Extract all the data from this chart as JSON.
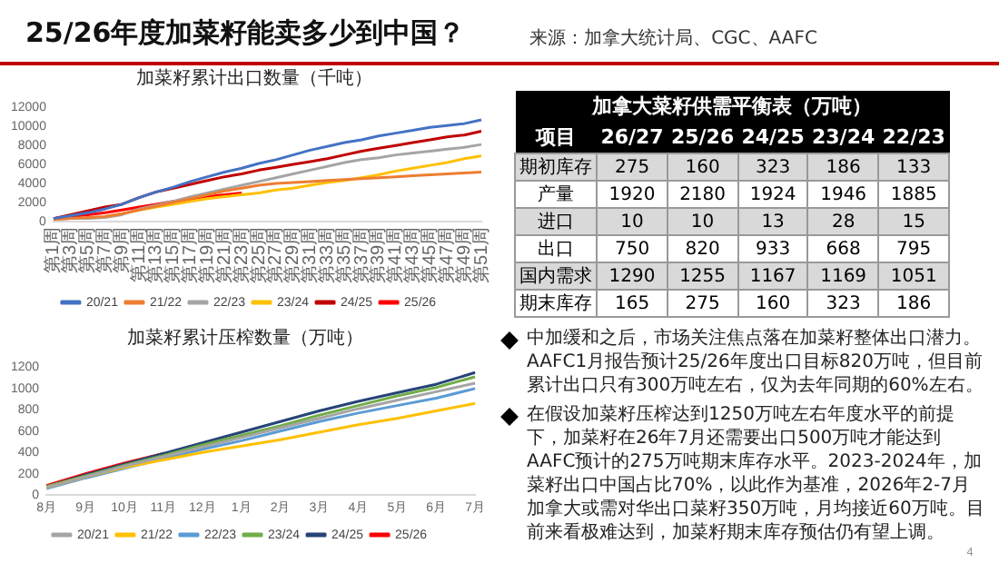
{
  "chart_data": [
    {
      "type": "other",
      "title": "25/26年度加菜籽能卖多少到中国？",
      "annotations": [
        "来源：加拿大统计局、CGC、AAFC",
        "4"
      ]
    },
    {
      "type": "line",
      "title": "加菜籽累计出口数量（千吨）",
      "categories": [
        "第1周",
        "第3周",
        "第5周",
        "第7周",
        "第9周",
        "第11周",
        "第13周",
        "第15周",
        "第17周",
        "第19周",
        "第21周",
        "第23周",
        "第25周",
        "第27周",
        "第29周",
        "第31周",
        "第33周",
        "第35周",
        "第37周",
        "第39周",
        "第41周",
        "第43周",
        "第45周",
        "第47周",
        "第49周",
        "第51周"
      ],
      "series": [
        {
          "name": "20/21",
          "color": "#4472c4",
          "values": [
            300,
            600,
            900,
            1300,
            1800,
            2500,
            3100,
            3600,
            4200,
            4700,
            5200,
            5600,
            6100,
            6500,
            7000,
            7500,
            7900,
            8300,
            8600,
            9000,
            9300,
            9600,
            9900,
            10100,
            10300,
            10700
          ]
        },
        {
          "name": "21/22",
          "color": "#ed7d31",
          "values": [
            200,
            300,
            400,
            500,
            800,
            1200,
            1600,
            2000,
            2400,
            2800,
            3200,
            3500,
            3800,
            4000,
            4100,
            4200,
            4300,
            4400,
            4500,
            4600,
            4700,
            4800,
            4900,
            5000,
            5100,
            5200
          ]
        },
        {
          "name": "22/23",
          "color": "#a5a5a5",
          "values": [
            200,
            300,
            300,
            400,
            700,
            1300,
            1700,
            2100,
            2600,
            3000,
            3400,
            3800,
            4200,
            4600,
            5000,
            5400,
            5800,
            6200,
            6500,
            6700,
            7000,
            7200,
            7400,
            7600,
            7800,
            8100
          ]
        },
        {
          "name": "23/24",
          "color": "#ffc000",
          "values": [
            null,
            null,
            null,
            500,
            800,
            1200,
            1500,
            1800,
            2100,
            2400,
            2600,
            2800,
            3000,
            3300,
            3500,
            3800,
            4100,
            4300,
            4600,
            4900,
            5300,
            5600,
            5900,
            6200,
            6600,
            6900
          ]
        },
        {
          "name": "24/25",
          "color": "#c00000",
          "values": [
            300,
            700,
            1100,
            1500,
            1800,
            2500,
            3100,
            3500,
            3900,
            4300,
            4700,
            5000,
            5400,
            5700,
            6000,
            6300,
            6600,
            7000,
            7400,
            7700,
            8000,
            8300,
            8600,
            8900,
            9100,
            9500
          ]
        },
        {
          "name": "25/26",
          "color": "#ff0000",
          "values": [
            300,
            500,
            700,
            900,
            1200,
            1500,
            1800,
            2100,
            2300,
            2600,
            2800,
            3000,
            null,
            null,
            null,
            null,
            null,
            null,
            null,
            null,
            null,
            null,
            null,
            null,
            null,
            null
          ]
        }
      ],
      "ylim": [
        0,
        12000
      ],
      "yticks": [
        0,
        2000,
        4000,
        6000,
        8000,
        10000,
        12000
      ],
      "legend": "bottom",
      "marker": "none"
    },
    {
      "type": "line",
      "title": "加菜籽累计压榨数量（万吨）",
      "categories": [
        "8月",
        "9月",
        "10月",
        "11月",
        "12月",
        "1月",
        "2月",
        "3月",
        "4月",
        "5月",
        "6月",
        "7月"
      ],
      "series": [
        {
          "name": "20/21",
          "color": "#a5a5a5",
          "values": [
            70,
            170,
            270,
            360,
            450,
            540,
            630,
            720,
            810,
            890,
            970,
            1050
          ]
        },
        {
          "name": "21/22",
          "color": "#ffc000",
          "values": [
            70,
            170,
            260,
            330,
            400,
            460,
            520,
            590,
            660,
            720,
            790,
            860
          ]
        },
        {
          "name": "22/23",
          "color": "#5b9bd5",
          "values": [
            60,
            160,
            250,
            340,
            430,
            510,
            600,
            690,
            770,
            840,
            910,
            1000
          ]
        },
        {
          "name": "23/24",
          "color": "#70ad47",
          "values": [
            80,
            180,
            280,
            370,
            470,
            560,
            650,
            750,
            840,
            930,
            1010,
            1110
          ]
        },
        {
          "name": "24/25",
          "color": "#264478",
          "values": [
            80,
            190,
            290,
            390,
            490,
            590,
            690,
            790,
            880,
            960,
            1040,
            1150
          ]
        },
        {
          "name": "25/26",
          "color": "#ff0000",
          "values": [
            90,
            200,
            300,
            390,
            null,
            null,
            null,
            null,
            null,
            null,
            null,
            null
          ]
        }
      ],
      "ylim": [
        0,
        1200
      ],
      "yticks": [
        0,
        200,
        400,
        600,
        800,
        1000,
        1200
      ],
      "legend": "bottom",
      "marker": "none"
    },
    {
      "type": "heatmap",
      "title": "加拿大菜籽供需平衡表（万吨）",
      "ylabel": "项目",
      "categories": [
        "26/27",
        "25/26",
        "24/25",
        "23/24",
        "22/23"
      ],
      "y_categories": [
        "期初库存",
        "产量",
        "进口",
        "出口",
        "国内需求",
        "期末库存"
      ],
      "data_labels": true,
      "cells": [
        [
          275,
          160,
          323,
          186,
          133
        ],
        [
          1920,
          2180,
          1924,
          1946,
          1885
        ],
        [
          10,
          10,
          13,
          28,
          15
        ],
        [
          750,
          820,
          933,
          668,
          795
        ],
        [
          1290,
          1255,
          1167,
          1169,
          1051
        ],
        [
          165,
          275,
          160,
          323,
          186
        ]
      ]
    },
    {
      "type": "other",
      "annotations": [
        "中加缓和之后，市场关注焦点落在加菜籽整体出口潜力。AAFC1月报告预计25/26年度出口目标820万吨，但目前累计出口只有300万吨左右，仅为去年同期的60%左右。",
        "在假设加菜籽压榨达到1250万吨左右年度水平的前提下，加菜籽在26年7月还需要出口500万吨才能达到AAFC预计的275万吨期末库存水平。2023-2024年，加菜籽出口中国占比70%，以此作为基准，2026年2-7月加拿大或需对华出口菜籽350万吨，月均接近60万吨。目前来看极难达到，加菜籽期末库存预估仍有望上调。"
      ]
    }
  ]
}
